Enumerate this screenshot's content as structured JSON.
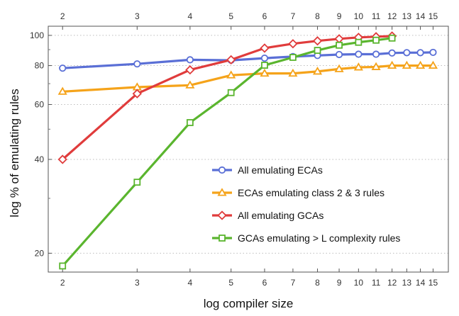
{
  "chart_data": {
    "type": "line",
    "xlabel": "log compiler size",
    "ylabel": "log % of emulating rules",
    "xscale": "log",
    "yscale": "log",
    "xlim": [
      1.85,
      16.3
    ],
    "ylim": [
      17.4,
      107
    ],
    "xticks": [
      2,
      3,
      4,
      5,
      6,
      7,
      8,
      9,
      10,
      11,
      12,
      13,
      14,
      15
    ],
    "xtick_labels": [
      "2",
      "3",
      "4",
      "5",
      "6",
      "7",
      "8",
      "9",
      "10",
      "11",
      "12",
      "13",
      "14",
      "15"
    ],
    "yticks": [
      20,
      40,
      60,
      80,
      100
    ],
    "ytick_labels": [
      "20",
      "40",
      "60",
      "80",
      "100"
    ],
    "grid": "horizontal dotted",
    "legend": "bottom-right",
    "series": [
      {
        "name": "All emulating ECAs",
        "color": "#5a6fd6",
        "marker": "circle",
        "x": [
          2,
          3,
          4,
          5,
          6,
          7,
          8,
          9,
          10,
          11,
          12,
          13,
          14,
          15
        ],
        "y": [
          78.5,
          81,
          83.5,
          83.2,
          84.5,
          85.5,
          86.2,
          86.8,
          87,
          87,
          87.8,
          88,
          88,
          88.2
        ]
      },
      {
        "name": "ECAs emulating class 2 & 3 rules",
        "color": "#f5a31a",
        "marker": "triangle",
        "x": [
          2,
          3,
          4,
          5,
          6,
          7,
          8,
          9,
          10,
          11,
          12,
          13,
          14,
          15
        ],
        "y": [
          66,
          68.2,
          69.2,
          74.5,
          75.5,
          75.5,
          76.6,
          78,
          79,
          79.2,
          80,
          80,
          80,
          80
        ]
      },
      {
        "name": "All emulating GCAs",
        "color": "#e03c3c",
        "marker": "diamond",
        "x": [
          2,
          3,
          4,
          5,
          6,
          7,
          8,
          9,
          10,
          11,
          12
        ],
        "y": [
          40,
          65,
          77.5,
          83.5,
          91,
          94,
          96,
          97.5,
          98.5,
          99,
          99.5
        ]
      },
      {
        "name": "GCAs emulating > L complexity rules",
        "color": "#5ab52e",
        "marker": "square",
        "x": [
          2,
          3,
          4,
          5,
          6,
          7,
          8,
          9,
          10,
          11,
          12
        ],
        "y": [
          18.2,
          33.8,
          52.5,
          65.5,
          80.2,
          85,
          89.5,
          93,
          95,
          96.5,
          98
        ]
      }
    ]
  }
}
